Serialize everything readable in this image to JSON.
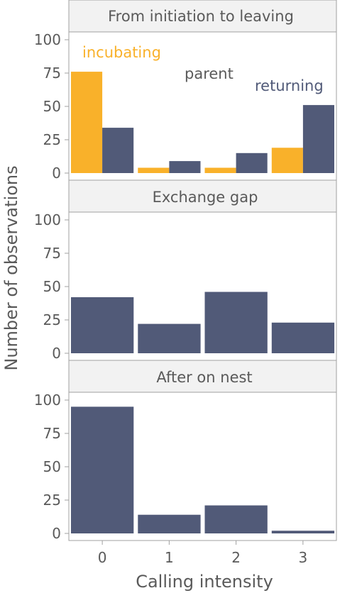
{
  "chart_data": {
    "type": "bar",
    "xlabel": "Calling intensity",
    "ylabel": "Number of observations",
    "x_ticks": [
      "0",
      "1",
      "2",
      "3"
    ],
    "y_ticks": [
      "0",
      "25",
      "50",
      "75",
      "100"
    ],
    "ylim": [
      0,
      105
    ],
    "colors": {
      "incubating": "#f9b12a",
      "returning": "#515a78"
    },
    "panels": [
      {
        "title": "From initiation to leaving",
        "annotations": {
          "incubating": "incubating",
          "parent": "parent",
          "returning": "returning"
        },
        "series": [
          {
            "name": "incubating",
            "values": [
              76,
              4,
              4,
              19
            ]
          },
          {
            "name": "returning",
            "values": [
              34,
              9,
              15,
              51
            ]
          }
        ]
      },
      {
        "title": "Exchange gap",
        "series": [
          {
            "name": "",
            "values": [
              42,
              22,
              46,
              23
            ]
          }
        ]
      },
      {
        "title": "After on nest",
        "series": [
          {
            "name": "",
            "values": [
              95,
              14,
              21,
              2
            ]
          }
        ]
      }
    ]
  }
}
